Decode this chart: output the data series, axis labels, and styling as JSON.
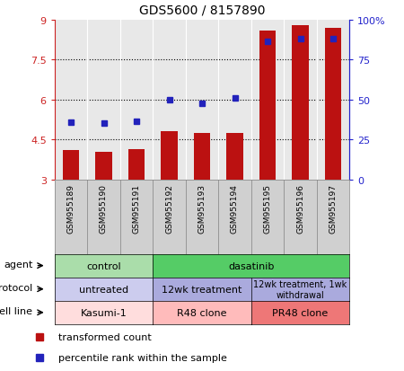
{
  "title": "GDS5600 / 8157890",
  "samples": [
    "GSM955189",
    "GSM955190",
    "GSM955191",
    "GSM955192",
    "GSM955193",
    "GSM955194",
    "GSM955195",
    "GSM955196",
    "GSM955197"
  ],
  "red_bars": [
    4.1,
    4.05,
    4.15,
    4.8,
    4.75,
    4.75,
    8.6,
    8.8,
    8.7
  ],
  "blue_dots_left": [
    5.15,
    5.1,
    5.2,
    6.0,
    5.85,
    6.05,
    8.2,
    8.3,
    8.3
  ],
  "ylim_left": [
    3,
    9
  ],
  "ylim_right": [
    0,
    100
  ],
  "yticks_left": [
    3,
    4.5,
    6,
    7.5,
    9
  ],
  "yticks_right": [
    0,
    25,
    50,
    75,
    100
  ],
  "ytick_labels_left": [
    "3",
    "4.5",
    "6",
    "7.5",
    "9"
  ],
  "ytick_labels_right": [
    "0",
    "25",
    "50",
    "75",
    "100%"
  ],
  "bar_color": "#bb1111",
  "dot_color": "#2222bb",
  "bar_bottom": 3,
  "agent_groups": [
    {
      "label": "control",
      "start": 0,
      "end": 3,
      "color": "#aaddaa"
    },
    {
      "label": "dasatinib",
      "start": 3,
      "end": 9,
      "color": "#55cc66"
    }
  ],
  "protocol_groups": [
    {
      "label": "untreated",
      "start": 0,
      "end": 3,
      "color": "#ccccee"
    },
    {
      "label": "12wk treatment",
      "start": 3,
      "end": 6,
      "color": "#aaaadd"
    },
    {
      "label": "12wk treatment, 1wk\nwithdrawal",
      "start": 6,
      "end": 9,
      "color": "#aaaadd"
    }
  ],
  "cellline_groups": [
    {
      "label": "Kasumi-1",
      "start": 0,
      "end": 3,
      "color": "#ffdddd"
    },
    {
      "label": "R48 clone",
      "start": 3,
      "end": 6,
      "color": "#ffbbbb"
    },
    {
      "label": "PR48 clone",
      "start": 6,
      "end": 9,
      "color": "#ee7777"
    }
  ],
  "row_labels": [
    "agent",
    "protocol",
    "cell line"
  ],
  "legend_red": "transformed count",
  "legend_blue": "percentile rank within the sample",
  "left_axis_color": "#cc2222",
  "right_axis_color": "#2222cc",
  "background_color": "#ffffff",
  "plot_bg": "#e8e8e8",
  "xtick_bg": "#d0d0d0"
}
